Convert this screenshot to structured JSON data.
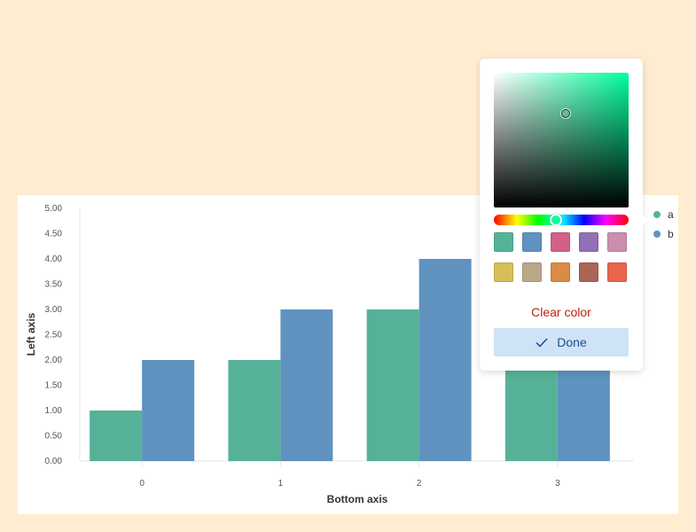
{
  "chart_data": {
    "type": "bar",
    "categories": [
      "0",
      "1",
      "2",
      "3"
    ],
    "series": [
      {
        "name": "a",
        "values": [
          1,
          2,
          3,
          4
        ],
        "color": "#55b298"
      },
      {
        "name": "b",
        "values": [
          2,
          3,
          4,
          5
        ],
        "color": "#6092c0"
      }
    ],
    "xlabel": "Bottom axis",
    "ylabel": "Left axis",
    "ylim": [
      0,
      5
    ],
    "y_ticks": [
      "0.00",
      "0.50",
      "1.00",
      "1.50",
      "2.00",
      "2.50",
      "3.00",
      "3.50",
      "4.00",
      "4.50",
      "5.00"
    ],
    "grid": false,
    "legend_position": "right"
  },
  "color_picker": {
    "selected_hue_color": "#00ff9d",
    "swatches": [
      "#54b399",
      "#6092c0",
      "#d36086",
      "#9170b8",
      "#ca8eae",
      "#d6bf57",
      "#b9a888",
      "#da8b45",
      "#aa6556",
      "#e7664c"
    ],
    "clear_label": "Clear color",
    "done_label": "Done",
    "done_icon": "check-icon"
  }
}
